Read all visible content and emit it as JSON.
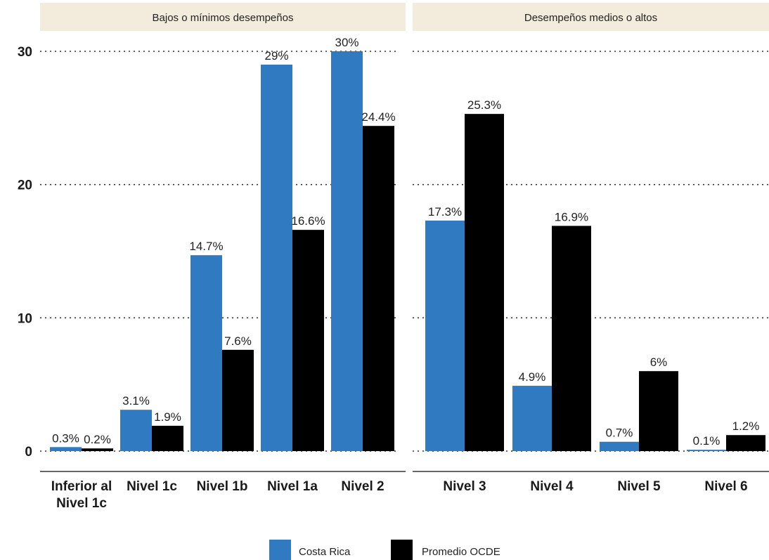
{
  "chart_data": {
    "type": "bar",
    "title": "",
    "xlabel": "",
    "ylabel": "",
    "ylim": [
      0,
      30
    ],
    "yticks": [
      "0",
      "10",
      "20",
      "30"
    ],
    "grid": "horizontal dotted",
    "legend_position": "bottom",
    "series": [
      {
        "name": "Costa Rica",
        "color": "#2f7ac0"
      },
      {
        "name": "Promedio OCDE",
        "color": "#000000"
      }
    ],
    "facets": [
      {
        "label": "Bajos o mínimos desempeños",
        "categories": [
          {
            "label": [
              "Inferior al",
              "Nivel 1c"
            ],
            "values": [
              0.3,
              0.2
            ],
            "labels": [
              "0.3%",
              "0.2%"
            ]
          },
          {
            "label": [
              "Nivel 1c"
            ],
            "values": [
              3.1,
              1.9
            ],
            "labels": [
              "3.1%",
              "1.9%"
            ]
          },
          {
            "label": [
              "Nivel 1b"
            ],
            "values": [
              14.7,
              7.6
            ],
            "labels": [
              "14.7%",
              "7.6%"
            ]
          },
          {
            "label": [
              "Nivel 1a"
            ],
            "values": [
              29,
              16.6
            ],
            "labels": [
              "29%",
              "16.6%"
            ]
          },
          {
            "label": [
              "Nivel 2"
            ],
            "values": [
              30,
              24.4
            ],
            "labels": [
              "30%",
              "24.4%"
            ]
          }
        ]
      },
      {
        "label": "Desempeños medios o altos",
        "categories": [
          {
            "label": [
              "Nivel 3"
            ],
            "values": [
              17.3,
              25.3
            ],
            "labels": [
              "17.3%",
              "25.3%"
            ]
          },
          {
            "label": [
              "Nivel 4"
            ],
            "values": [
              4.9,
              16.9
            ],
            "labels": [
              "4.9%",
              "16.9%"
            ]
          },
          {
            "label": [
              "Nivel 5"
            ],
            "values": [
              0.7,
              6
            ],
            "labels": [
              "0.7%",
              "6%"
            ]
          },
          {
            "label": [
              "Nivel 6"
            ],
            "values": [
              0.1,
              1.2
            ],
            "labels": [
              "0.1%",
              "1.2%"
            ]
          }
        ]
      }
    ]
  }
}
